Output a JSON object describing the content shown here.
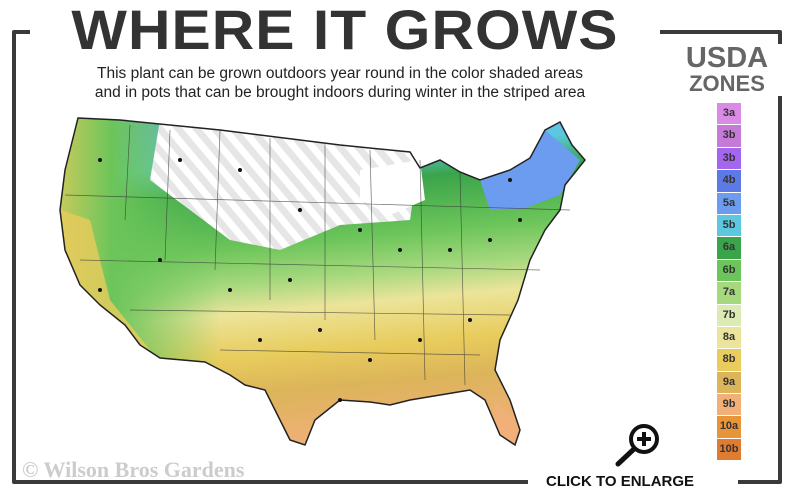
{
  "header": {
    "title": "WHERE IT GROWS",
    "subtitle_line1": "This plant can be grown outdoors year round in the color shaded areas",
    "subtitle_line2": "and in pots that can be brought indoors during winter in the striped area"
  },
  "legend": {
    "title_line1": "USDA",
    "title_line2": "ZONES",
    "zones": [
      {
        "label": "3a",
        "color": "#d98be6"
      },
      {
        "label": "3b",
        "color": "#c57ad8"
      },
      {
        "label": "3b",
        "color": "#a466ef"
      },
      {
        "label": "4b",
        "color": "#5c79e6"
      },
      {
        "label": "5a",
        "color": "#6c9cf0"
      },
      {
        "label": "5b",
        "color": "#5cc8e0"
      },
      {
        "label": "6a",
        "color": "#3aa44a"
      },
      {
        "label": "6b",
        "color": "#6cc55a"
      },
      {
        "label": "7a",
        "color": "#a6d87e"
      },
      {
        "label": "7b",
        "color": "#dcebb4"
      },
      {
        "label": "8a",
        "color": "#ece49a"
      },
      {
        "label": "8b",
        "color": "#e8cc5c"
      },
      {
        "label": "9a",
        "color": "#dcb45a"
      },
      {
        "label": "9b",
        "color": "#f0b078"
      },
      {
        "label": "10a",
        "color": "#e89438"
      },
      {
        "label": "10b",
        "color": "#e07c30"
      }
    ]
  },
  "footer": {
    "copyright": "© Wilson Bros Gardens",
    "enlarge_label": "CLICK TO ENLARGE",
    "enlarge_icon": "magnifier-plus-icon"
  }
}
